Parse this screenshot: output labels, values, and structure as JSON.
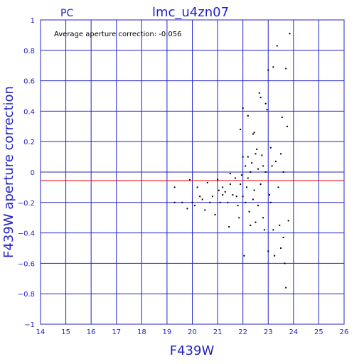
{
  "chart_data": {
    "type": "scatter",
    "title": "lmc_u4zn07",
    "corner_label": "PC",
    "annotation": "Average aperture correction: -0.056",
    "xlabel": "F439W",
    "ylabel": "F439W aperture correction",
    "xlim": [
      14,
      26
    ],
    "ylim": [
      -1,
      1
    ],
    "x_ticks": [
      14,
      15,
      16,
      17,
      18,
      19,
      20,
      21,
      22,
      23,
      24,
      25,
      26
    ],
    "y_ticks": [
      -1,
      -0.8,
      -0.6,
      -0.4,
      -0.2,
      0,
      0.2,
      0.4,
      0.6,
      0.8,
      1
    ],
    "y_tick_labels": [
      "−1",
      "−0.8",
      "−0.6",
      "−0.4",
      "−0.2",
      "0",
      "0.2",
      "0.4",
      "0.6",
      "0.8",
      "1"
    ],
    "grid": true,
    "reference_line": {
      "y": -0.056,
      "color": "#e00000"
    },
    "zero_line": {
      "y": 0
    },
    "axis_color": "#2323c8",
    "point_color": "#000000",
    "points": [
      [
        19.3,
        -0.1
      ],
      [
        19.3,
        -0.2
      ],
      [
        19.6,
        -0.2
      ],
      [
        19.8,
        -0.24
      ],
      [
        19.9,
        -0.05
      ],
      [
        20.0,
        -0.2
      ],
      [
        20.1,
        -0.22
      ],
      [
        20.2,
        -0.1
      ],
      [
        20.3,
        -0.16
      ],
      [
        20.4,
        -0.18
      ],
      [
        20.5,
        -0.25
      ],
      [
        20.6,
        -0.07
      ],
      [
        20.7,
        -0.2
      ],
      [
        20.8,
        -0.16
      ],
      [
        20.9,
        -0.28
      ],
      [
        21.0,
        -0.05
      ],
      [
        21.05,
        -0.12
      ],
      [
        21.1,
        -0.2
      ],
      [
        21.2,
        -0.1
      ],
      [
        21.3,
        -0.13
      ],
      [
        21.4,
        -0.2
      ],
      [
        21.45,
        -0.36
      ],
      [
        21.5,
        -0.08
      ],
      [
        21.5,
        -0.01
      ],
      [
        21.6,
        -0.15
      ],
      [
        21.7,
        -0.04
      ],
      [
        21.75,
        -0.16
      ],
      [
        21.8,
        -0.22
      ],
      [
        21.85,
        -0.3
      ],
      [
        21.9,
        0.28
      ],
      [
        21.9,
        -0.08
      ],
      [
        21.95,
        -0.02
      ],
      [
        22.0,
        0.42
      ],
      [
        22.0,
        0.1
      ],
      [
        22.0,
        -0.16
      ],
      [
        22.05,
        -0.55
      ],
      [
        22.1,
        -0.2
      ],
      [
        22.1,
        0.04
      ],
      [
        22.15,
        -0.1
      ],
      [
        22.2,
        0.37
      ],
      [
        22.2,
        -0.04
      ],
      [
        22.25,
        -0.26
      ],
      [
        22.3,
        -0.35
      ],
      [
        22.3,
        0.0
      ],
      [
        22.35,
        0.06
      ],
      [
        22.4,
        0.25
      ],
      [
        22.4,
        -0.18
      ],
      [
        22.45,
        -0.12
      ],
      [
        22.5,
        0.12
      ],
      [
        22.5,
        -0.33
      ],
      [
        22.55,
        0.15
      ],
      [
        22.6,
        0.02
      ],
      [
        22.6,
        -0.22
      ],
      [
        22.65,
        0.52
      ],
      [
        22.7,
        0.49
      ],
      [
        22.7,
        -0.08
      ],
      [
        22.75,
        0.11
      ],
      [
        22.8,
        0.04
      ],
      [
        22.8,
        -0.3
      ],
      [
        22.85,
        -0.38
      ],
      [
        22.9,
        0.45
      ],
      [
        22.9,
        0.0
      ],
      [
        22.95,
        0.41
      ],
      [
        23.0,
        0.67
      ],
      [
        23.0,
        -0.52
      ],
      [
        23.05,
        -0.15
      ],
      [
        23.1,
        0.16
      ],
      [
        23.1,
        -0.2
      ],
      [
        23.15,
        0.04
      ],
      [
        23.2,
        0.69
      ],
      [
        23.2,
        -0.38
      ],
      [
        23.25,
        -0.55
      ],
      [
        23.3,
        0.07
      ],
      [
        23.35,
        0.83
      ],
      [
        23.4,
        -0.1
      ],
      [
        23.45,
        -0.35
      ],
      [
        23.5,
        0.12
      ],
      [
        23.55,
        0.36
      ],
      [
        23.6,
        -0.43
      ],
      [
        23.65,
        -0.6
      ],
      [
        23.7,
        0.68
      ],
      [
        23.7,
        -0.76
      ],
      [
        23.75,
        0.3
      ],
      [
        23.8,
        -0.32
      ],
      [
        23.85,
        0.91
      ],
      [
        23.5,
        -0.5
      ],
      [
        23.6,
        0.0
      ],
      [
        22.45,
        0.26
      ],
      [
        21.2,
        -0.15
      ],
      [
        22.2,
        0.1
      ]
    ]
  }
}
